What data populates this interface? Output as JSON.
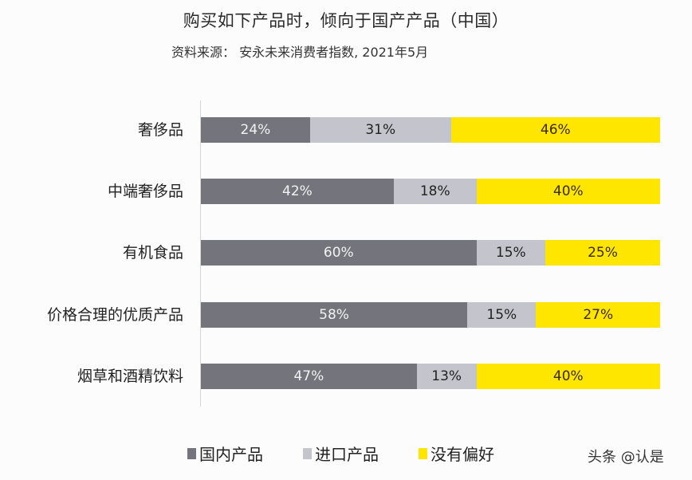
{
  "header": {
    "title": "购买如下产品时，倾向于国产产品（中国）",
    "subtitle": "资料来源： 安永未来消费者指数, 2021年5月"
  },
  "legend": [
    {
      "label": "国内产品",
      "color": "#74747d"
    },
    {
      "label": "进口产品",
      "color": "#c4c5cc"
    },
    {
      "label": "没有偏好",
      "color": "#ffe600"
    }
  ],
  "watermark": "头条 @认是",
  "rows": [
    {
      "label": "奢侈品",
      "domestic": "24%",
      "imported": "31%",
      "none": "46%"
    },
    {
      "label": "中端奢侈品",
      "domestic": "42%",
      "imported": "18%",
      "none": "40%"
    },
    {
      "label": "有机食品",
      "domestic": "60%",
      "imported": "15%",
      "none": "25%"
    },
    {
      "label": "价格合理的优质产品",
      "domestic": "58%",
      "imported": "15%",
      "none": "27%"
    },
    {
      "label": "烟草和酒精饮料",
      "domestic": "47%",
      "imported": "13%",
      "none": "40%"
    }
  ],
  "chart_data": {
    "type": "bar",
    "orientation": "horizontal",
    "stacked": true,
    "percent_stacked": true,
    "title": "购买如下产品时，倾向于国产产品（中国）",
    "subtitle": "资料来源： 安永未来消费者指数, 2021年5月",
    "categories": [
      "奢侈品",
      "中端奢侈品",
      "有机食品",
      "价格合理的优质产品",
      "烟草和酒精饮料"
    ],
    "series": [
      {
        "name": "国内产品",
        "color": "#74747d",
        "values": [
          24,
          42,
          60,
          58,
          47
        ]
      },
      {
        "name": "进口产品",
        "color": "#c4c5cc",
        "values": [
          31,
          18,
          15,
          15,
          13
        ]
      },
      {
        "name": "没有偏好",
        "color": "#ffe600",
        "values": [
          46,
          40,
          25,
          27,
          40
        ]
      }
    ],
    "data_labels": true,
    "value_suffix": "%",
    "xlabel": "",
    "ylabel": "",
    "xlim": [
      0,
      100
    ],
    "grid": false,
    "legend_position": "bottom"
  }
}
